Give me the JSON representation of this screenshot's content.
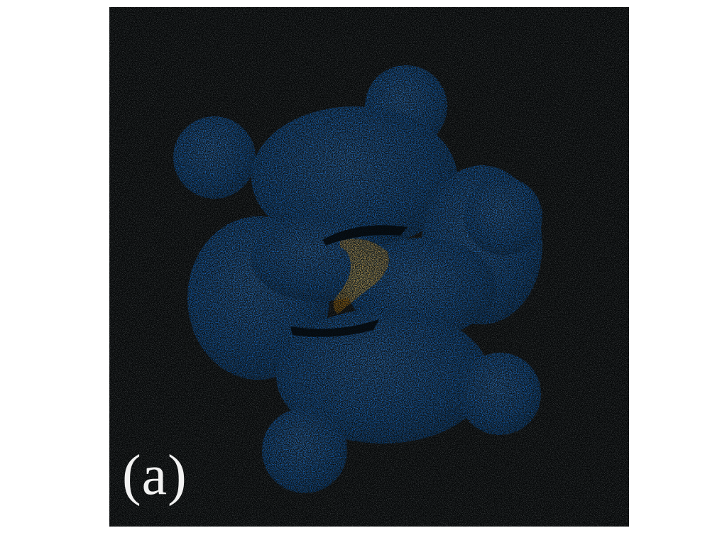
{
  "figure": {
    "panel_label": "(a)",
    "colors": {
      "background": "#050708",
      "blob": "#0f6fd9",
      "blob_highlight": "#1a82ee",
      "core": "#e39a16"
    }
  }
}
